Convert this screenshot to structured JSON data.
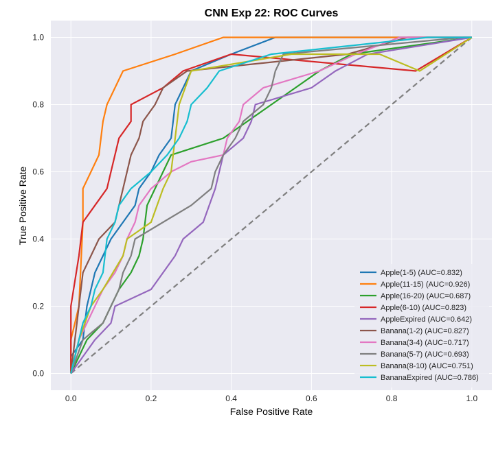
{
  "chart_data": {
    "type": "line",
    "title": "CNN Exp 22: ROC Curves",
    "xlabel": "False Positive Rate",
    "ylabel": "True Positive Rate",
    "xlim": [
      -0.05,
      1.05
    ],
    "ylim": [
      -0.05,
      1.05
    ],
    "xticks": [
      "0.0",
      "0.2",
      "0.4",
      "0.6",
      "0.8",
      "1.0"
    ],
    "yticks": [
      "0.0",
      "0.2",
      "0.4",
      "0.6",
      "0.8",
      "1.0"
    ],
    "grid": true,
    "legend_position": "lower right",
    "background_color": "#eaeaf2",
    "diagonal": {
      "x": [
        0,
        1
      ],
      "y": [
        0,
        1
      ],
      "style": "dashed",
      "color": "#7f7f7f"
    },
    "series": [
      {
        "name": "Apple(1-5) (AUC=0.832)",
        "color": "#1f77b4",
        "points": [
          [
            0,
            0
          ],
          [
            0,
            0.05
          ],
          [
            0.03,
            0.1
          ],
          [
            0.04,
            0.2
          ],
          [
            0.05,
            0.25
          ],
          [
            0.06,
            0.3
          ],
          [
            0.08,
            0.35
          ],
          [
            0.1,
            0.4
          ],
          [
            0.13,
            0.45
          ],
          [
            0.16,
            0.5
          ],
          [
            0.17,
            0.55
          ],
          [
            0.2,
            0.6
          ],
          [
            0.22,
            0.65
          ],
          [
            0.25,
            0.7
          ],
          [
            0.26,
            0.8
          ],
          [
            0.28,
            0.85
          ],
          [
            0.3,
            0.9
          ],
          [
            0.4,
            0.95
          ],
          [
            0.51,
            1.0
          ],
          [
            1,
            1
          ]
        ]
      },
      {
        "name": "Apple(11-15) (AUC=0.926)",
        "color": "#ff7f0e",
        "points": [
          [
            0,
            0
          ],
          [
            0,
            0.1
          ],
          [
            0.02,
            0.2
          ],
          [
            0.03,
            0.45
          ],
          [
            0.03,
            0.55
          ],
          [
            0.05,
            0.6
          ],
          [
            0.07,
            0.65
          ],
          [
            0.08,
            0.75
          ],
          [
            0.09,
            0.8
          ],
          [
            0.13,
            0.9
          ],
          [
            0.26,
            0.95
          ],
          [
            0.38,
            1.0
          ],
          [
            1,
            1
          ]
        ]
      },
      {
        "name": "Apple(16-20) (AUC=0.687)",
        "color": "#2ca02c",
        "points": [
          [
            0,
            0
          ],
          [
            0.02,
            0.05
          ],
          [
            0.04,
            0.1
          ],
          [
            0.08,
            0.15
          ],
          [
            0.1,
            0.2
          ],
          [
            0.12,
            0.25
          ],
          [
            0.15,
            0.3
          ],
          [
            0.17,
            0.35
          ],
          [
            0.18,
            0.4
          ],
          [
            0.19,
            0.5
          ],
          [
            0.21,
            0.55
          ],
          [
            0.23,
            0.6
          ],
          [
            0.25,
            0.65
          ],
          [
            0.38,
            0.7
          ],
          [
            0.5,
            0.8
          ],
          [
            0.56,
            0.85
          ],
          [
            0.62,
            0.9
          ],
          [
            0.7,
            0.95
          ],
          [
            1,
            1
          ]
        ]
      },
      {
        "name": "Apple(6-10) (AUC=0.823)",
        "color": "#d62728",
        "points": [
          [
            0,
            0
          ],
          [
            0,
            0.2
          ],
          [
            0.02,
            0.35
          ],
          [
            0.03,
            0.45
          ],
          [
            0.09,
            0.55
          ],
          [
            0.1,
            0.6
          ],
          [
            0.12,
            0.7
          ],
          [
            0.15,
            0.75
          ],
          [
            0.15,
            0.8
          ],
          [
            0.23,
            0.85
          ],
          [
            0.28,
            0.9
          ],
          [
            0.4,
            0.95
          ],
          [
            0.86,
            0.9
          ],
          [
            1,
            1
          ]
        ]
      },
      {
        "name": "AppleExpired (AUC=0.642)",
        "color": "#9467bd",
        "points": [
          [
            0,
            0
          ],
          [
            0.03,
            0.05
          ],
          [
            0.06,
            0.1
          ],
          [
            0.1,
            0.15
          ],
          [
            0.11,
            0.2
          ],
          [
            0.2,
            0.25
          ],
          [
            0.23,
            0.3
          ],
          [
            0.26,
            0.35
          ],
          [
            0.28,
            0.4
          ],
          [
            0.33,
            0.45
          ],
          [
            0.36,
            0.55
          ],
          [
            0.38,
            0.65
          ],
          [
            0.43,
            0.7
          ],
          [
            0.45,
            0.75
          ],
          [
            0.46,
            0.8
          ],
          [
            0.6,
            0.85
          ],
          [
            0.66,
            0.9
          ],
          [
            0.74,
            0.95
          ],
          [
            1,
            1
          ]
        ]
      },
      {
        "name": "Banana(1-2) (AUC=0.827)",
        "color": "#8c564b",
        "points": [
          [
            0,
            0
          ],
          [
            0.01,
            0.1
          ],
          [
            0.02,
            0.2
          ],
          [
            0.03,
            0.3
          ],
          [
            0.05,
            0.35
          ],
          [
            0.07,
            0.4
          ],
          [
            0.11,
            0.45
          ],
          [
            0.13,
            0.55
          ],
          [
            0.15,
            0.65
          ],
          [
            0.17,
            0.7
          ],
          [
            0.18,
            0.75
          ],
          [
            0.21,
            0.8
          ],
          [
            0.23,
            0.85
          ],
          [
            0.29,
            0.9
          ],
          [
            0.69,
            0.95
          ],
          [
            0.84,
            1.0
          ],
          [
            1,
            1
          ]
        ]
      },
      {
        "name": "Banana(3-4) (AUC=0.717)",
        "color": "#e377c2",
        "points": [
          [
            0,
            0
          ],
          [
            0.01,
            0.05
          ],
          [
            0.02,
            0.1
          ],
          [
            0.04,
            0.15
          ],
          [
            0.06,
            0.2
          ],
          [
            0.08,
            0.25
          ],
          [
            0.11,
            0.3
          ],
          [
            0.13,
            0.35
          ],
          [
            0.14,
            0.4
          ],
          [
            0.16,
            0.45
          ],
          [
            0.17,
            0.5
          ],
          [
            0.2,
            0.55
          ],
          [
            0.25,
            0.6
          ],
          [
            0.3,
            0.63
          ],
          [
            0.38,
            0.65
          ],
          [
            0.39,
            0.7
          ],
          [
            0.42,
            0.75
          ],
          [
            0.43,
            0.8
          ],
          [
            0.48,
            0.85
          ],
          [
            0.62,
            0.9
          ],
          [
            0.71,
            0.95
          ],
          [
            0.82,
            1.0
          ],
          [
            1,
            1
          ]
        ]
      },
      {
        "name": "Banana(5-7) (AUC=0.693)",
        "color": "#7f7f7f",
        "points": [
          [
            0,
            0
          ],
          [
            0.03,
            0.1
          ],
          [
            0.08,
            0.15
          ],
          [
            0.1,
            0.2
          ],
          [
            0.12,
            0.25
          ],
          [
            0.13,
            0.3
          ],
          [
            0.15,
            0.35
          ],
          [
            0.16,
            0.4
          ],
          [
            0.23,
            0.45
          ],
          [
            0.3,
            0.5
          ],
          [
            0.35,
            0.55
          ],
          [
            0.36,
            0.6
          ],
          [
            0.38,
            0.65
          ],
          [
            0.41,
            0.7
          ],
          [
            0.43,
            0.75
          ],
          [
            0.48,
            0.8
          ],
          [
            0.5,
            0.85
          ],
          [
            0.51,
            0.9
          ],
          [
            0.53,
            0.95
          ],
          [
            0.98,
            1.0
          ],
          [
            1,
            1
          ]
        ]
      },
      {
        "name": "Banana(8-10) (AUC=0.751)",
        "color": "#bcbd22",
        "points": [
          [
            0,
            0
          ],
          [
            0.02,
            0.1
          ],
          [
            0.05,
            0.2
          ],
          [
            0.08,
            0.25
          ],
          [
            0.13,
            0.35
          ],
          [
            0.14,
            0.4
          ],
          [
            0.2,
            0.45
          ],
          [
            0.23,
            0.55
          ],
          [
            0.25,
            0.6
          ],
          [
            0.27,
            0.8
          ],
          [
            0.3,
            0.9
          ],
          [
            0.55,
            0.95
          ],
          [
            0.77,
            0.95
          ],
          [
            0.87,
            0.9
          ],
          [
            1,
            1
          ]
        ]
      },
      {
        "name": "BananaExpired (AUC=0.786)",
        "color": "#17becf",
        "points": [
          [
            0,
            0
          ],
          [
            0.02,
            0.1
          ],
          [
            0.03,
            0.15
          ],
          [
            0.05,
            0.2
          ],
          [
            0.06,
            0.25
          ],
          [
            0.08,
            0.3
          ],
          [
            0.09,
            0.4
          ],
          [
            0.11,
            0.45
          ],
          [
            0.12,
            0.5
          ],
          [
            0.15,
            0.55
          ],
          [
            0.2,
            0.6
          ],
          [
            0.24,
            0.65
          ],
          [
            0.27,
            0.7
          ],
          [
            0.29,
            0.75
          ],
          [
            0.3,
            0.8
          ],
          [
            0.34,
            0.85
          ],
          [
            0.37,
            0.9
          ],
          [
            0.5,
            0.95
          ],
          [
            0.89,
            1.0
          ],
          [
            1,
            1
          ]
        ]
      }
    ]
  }
}
